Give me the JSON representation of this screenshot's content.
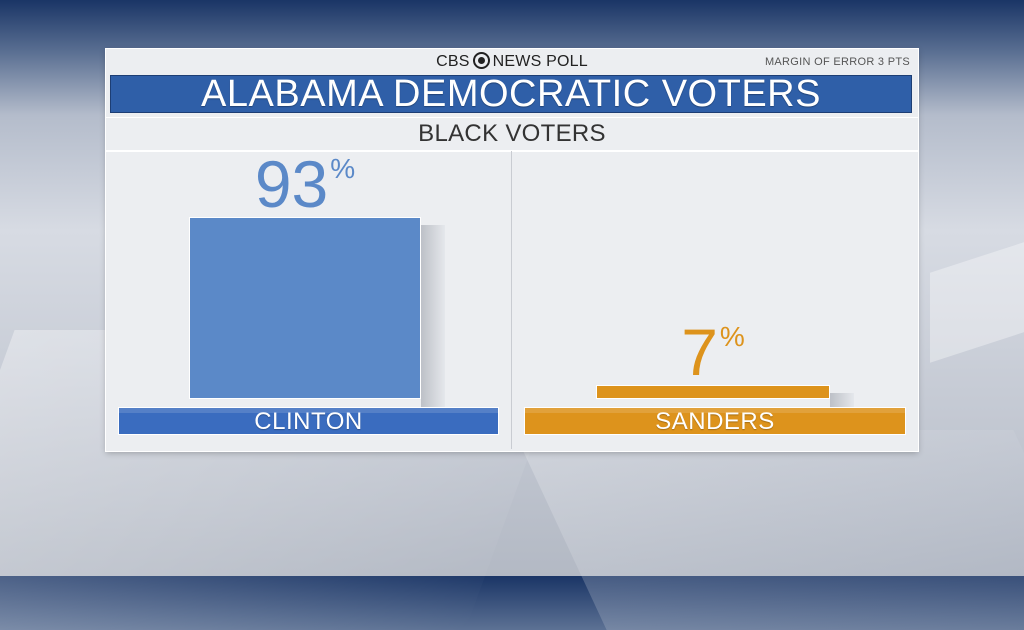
{
  "header": {
    "brand_left": "CBS",
    "brand_right": "NEWS POLL",
    "margin_of_error": "MARGIN OF ERROR 3 PTS",
    "title": "ALABAMA DEMOCRATIC VOTERS",
    "subtitle": "BLACK VOTERS"
  },
  "colors": {
    "clinton": "#5b89c8",
    "clinton_label": "#3a6cbf",
    "sanders": "#dd931c",
    "title_bar": "#2f5fa8"
  },
  "chart_data": {
    "type": "bar",
    "title": "ALABAMA DEMOCRATIC VOTERS",
    "subtitle": "BLACK VOTERS",
    "categories": [
      "CLINTON",
      "SANDERS"
    ],
    "values": [
      93,
      7
    ],
    "value_labels": [
      "93",
      "7"
    ],
    "unit": "%",
    "ylim": [
      0,
      93
    ],
    "grid": false
  }
}
